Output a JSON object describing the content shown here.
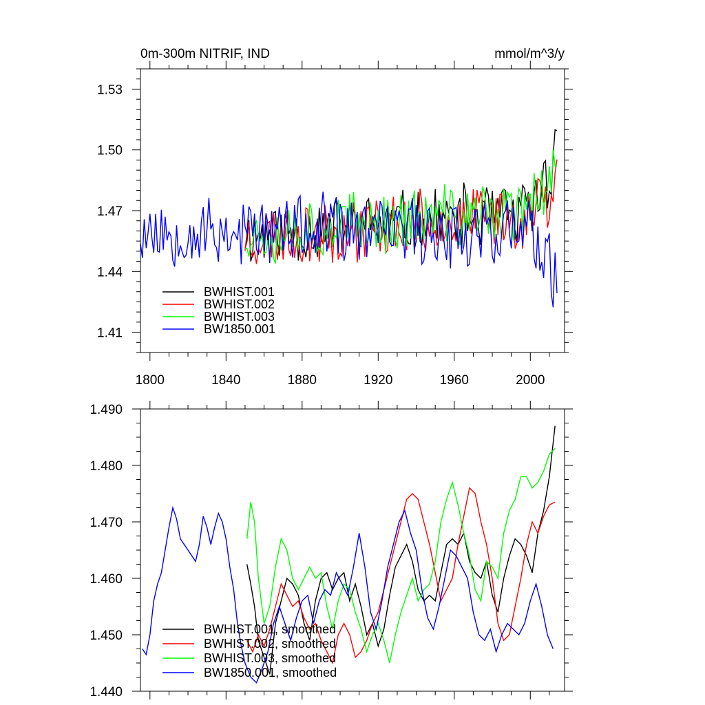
{
  "chart_data": [
    {
      "type": "line",
      "title_left": "0m-300m NITRIF, IND",
      "title_right": "mmol/m^3/y",
      "xlim": [
        1795,
        2018
      ],
      "ylim": [
        1.4,
        1.54
      ],
      "xticks": [
        1800,
        1840,
        1880,
        1920,
        1960,
        2000
      ],
      "yticks": [
        1.41,
        1.44,
        1.47,
        1.5,
        1.53
      ],
      "ytick_labels": [
        "1.41",
        "1.44",
        "1.47",
        "1.50",
        "1.53"
      ],
      "legend": [
        "BWHIST.001",
        "BWHIST.002",
        "BWHIST.003",
        "BW1850.001"
      ],
      "legend_position": "bottom-left",
      "series": [
        {
          "name": "BWHIST.001",
          "color": "#000000",
          "x_start": 1850,
          "seed": 11,
          "base": 1.458,
          "trend": 0.012,
          "amp": 0.018,
          "end_boost": 0.03
        },
        {
          "name": "BWHIST.002",
          "color": "#ff0000",
          "x_start": 1850,
          "seed": 23,
          "base": 1.457,
          "trend": 0.012,
          "amp": 0.018,
          "end_boost": 0.02
        },
        {
          "name": "BWHIST.003",
          "color": "#00ff00",
          "x_start": 1850,
          "seed": 37,
          "base": 1.459,
          "trend": 0.012,
          "amp": 0.018,
          "end_boost": 0.025
        },
        {
          "name": "BW1850.001",
          "color": "#0000ff",
          "x_start": 1795,
          "seed": 53,
          "base": 1.46,
          "trend": 0.0,
          "amp": 0.02,
          "end_boost": -0.02
        }
      ]
    },
    {
      "type": "line",
      "xlim": [
        1795,
        2018
      ],
      "ylim": [
        1.44,
        1.49
      ],
      "xticks": [
        1800,
        1840,
        1880,
        1920,
        1960,
        2000
      ],
      "yticks": [
        1.44,
        1.45,
        1.46,
        1.47,
        1.48,
        1.49
      ],
      "ytick_labels": [
        "1.440",
        "1.450",
        "1.460",
        "1.470",
        "1.480",
        "1.490"
      ],
      "legend": [
        "BWHIST.001, smoothed",
        "BWHIST.002, smoothed",
        "BWHIST.003, smoothed",
        "BW1850.001, smoothed"
      ],
      "legend_position": "bottom-left",
      "series": [
        {
          "name": "BWHIST.001, smoothed",
          "color": "#000000",
          "x": [
            1851,
            1853,
            1855,
            1857,
            1860,
            1863,
            1866,
            1869,
            1872,
            1875,
            1878,
            1881,
            1884,
            1887,
            1890,
            1893,
            1896,
            1899,
            1902,
            1905,
            1908,
            1911,
            1914,
            1917,
            1920,
            1923,
            1926,
            1929,
            1932,
            1935,
            1938,
            1941,
            1944,
            1947,
            1950,
            1953,
            1956,
            1959,
            1962,
            1965,
            1968,
            1971,
            1974,
            1977,
            1980,
            1983,
            1986,
            1989,
            1992,
            1995,
            1998,
            2001,
            2004,
            2007,
            2010,
            2013
          ],
          "values": [
            1.4625,
            1.459,
            1.455,
            1.449,
            1.446,
            1.443,
            1.452,
            1.456,
            1.46,
            1.459,
            1.457,
            1.452,
            1.449,
            1.456,
            1.46,
            1.461,
            1.458,
            1.46,
            1.461,
            1.456,
            1.459,
            1.455,
            1.45,
            1.452,
            1.448,
            1.451,
            1.457,
            1.462,
            1.464,
            1.466,
            1.463,
            1.458,
            1.456,
            1.457,
            1.456,
            1.461,
            1.466,
            1.467,
            1.466,
            1.468,
            1.463,
            1.461,
            1.46,
            1.463,
            1.457,
            1.454,
            1.46,
            1.464,
            1.467,
            1.466,
            1.464,
            1.461,
            1.468,
            1.472,
            1.478,
            1.487
          ]
        },
        {
          "name": "BWHIST.002, smoothed",
          "color": "#ff0000",
          "x": [
            1851,
            1854,
            1857,
            1860,
            1863,
            1866,
            1869,
            1872,
            1875,
            1878,
            1881,
            1884,
            1887,
            1890,
            1893,
            1896,
            1899,
            1902,
            1905,
            1908,
            1911,
            1914,
            1917,
            1920,
            1923,
            1926,
            1929,
            1932,
            1935,
            1938,
            1941,
            1944,
            1947,
            1950,
            1953,
            1956,
            1959,
            1962,
            1965,
            1968,
            1971,
            1974,
            1977,
            1980,
            1983,
            1986,
            1989,
            1992,
            1995,
            1998,
            2001,
            2004,
            2007,
            2010,
            2013
          ],
          "values": [
            1.449,
            1.447,
            1.45,
            1.448,
            1.451,
            1.455,
            1.459,
            1.457,
            1.455,
            1.456,
            1.453,
            1.451,
            1.452,
            1.449,
            1.447,
            1.445,
            1.45,
            1.452,
            1.45,
            1.446,
            1.447,
            1.449,
            1.452,
            1.454,
            1.458,
            1.462,
            1.466,
            1.47,
            1.474,
            1.475,
            1.474,
            1.47,
            1.466,
            1.461,
            1.456,
            1.458,
            1.46,
            1.466,
            1.471,
            1.476,
            1.475,
            1.47,
            1.466,
            1.46,
            1.452,
            1.449,
            1.45,
            1.455,
            1.46,
            1.466,
            1.47,
            1.468,
            1.471,
            1.473,
            1.4735
          ]
        },
        {
          "name": "BWHIST.003, smoothed",
          "color": "#00ff00",
          "x": [
            1851,
            1853,
            1855,
            1857,
            1860,
            1863,
            1866,
            1869,
            1872,
            1875,
            1878,
            1881,
            1884,
            1887,
            1890,
            1893,
            1896,
            1899,
            1902,
            1905,
            1908,
            1911,
            1914,
            1917,
            1920,
            1923,
            1926,
            1929,
            1932,
            1935,
            1938,
            1941,
            1944,
            1947,
            1950,
            1953,
            1956,
            1959,
            1962,
            1965,
            1968,
            1971,
            1974,
            1977,
            1980,
            1983,
            1986,
            1989,
            1992,
            1995,
            1998,
            2001,
            2004,
            2007,
            2010,
            2013
          ],
          "values": [
            1.467,
            1.4735,
            1.47,
            1.46,
            1.452,
            1.455,
            1.462,
            1.467,
            1.465,
            1.46,
            1.458,
            1.46,
            1.462,
            1.46,
            1.461,
            1.455,
            1.451,
            1.456,
            1.459,
            1.458,
            1.454,
            1.451,
            1.447,
            1.45,
            1.452,
            1.449,
            1.445,
            1.45,
            1.454,
            1.457,
            1.46,
            1.456,
            1.458,
            1.459,
            1.463,
            1.47,
            1.474,
            1.477,
            1.473,
            1.468,
            1.464,
            1.458,
            1.456,
            1.463,
            1.462,
            1.46,
            1.468,
            1.472,
            1.474,
            1.478,
            1.478,
            1.476,
            1.477,
            1.479,
            1.482,
            1.483
          ]
        },
        {
          "name": "BW1850.001, smoothed",
          "color": "#0000ff",
          "x": [
            1796,
            1798,
            1800,
            1802,
            1804,
            1806,
            1808,
            1810,
            1812,
            1814,
            1816,
            1818,
            1820,
            1822,
            1824,
            1826,
            1828,
            1830,
            1832,
            1834,
            1836,
            1838,
            1840,
            1842,
            1844,
            1846,
            1848,
            1850,
            1853,
            1856,
            1859,
            1862,
            1865,
            1868,
            1871,
            1874,
            1877,
            1880,
            1883,
            1886,
            1889,
            1892,
            1895,
            1898,
            1901,
            1904,
            1907,
            1910,
            1913,
            1916,
            1919,
            1922,
            1925,
            1928,
            1931,
            1934,
            1937,
            1940,
            1943,
            1946,
            1949,
            1952,
            1955,
            1958,
            1961,
            1964,
            1967,
            1970,
            1973,
            1976,
            1979,
            1982,
            1985,
            1988,
            1991,
            1994,
            1997,
            2000,
            2003,
            2006,
            2009,
            2012
          ],
          "values": [
            1.4475,
            1.4465,
            1.45,
            1.456,
            1.459,
            1.461,
            1.465,
            1.469,
            1.4725,
            1.4705,
            1.467,
            1.466,
            1.465,
            1.464,
            1.463,
            1.466,
            1.471,
            1.469,
            1.466,
            1.469,
            1.4715,
            1.47,
            1.467,
            1.462,
            1.458,
            1.452,
            1.448,
            1.445,
            1.4425,
            1.4415,
            1.444,
            1.447,
            1.452,
            1.455,
            1.452,
            1.449,
            1.453,
            1.456,
            1.457,
            1.452,
            1.456,
            1.458,
            1.457,
            1.461,
            1.459,
            1.457,
            1.462,
            1.468,
            1.462,
            1.454,
            1.451,
            1.456,
            1.462,
            1.466,
            1.47,
            1.472,
            1.468,
            1.465,
            1.458,
            1.453,
            1.451,
            1.455,
            1.46,
            1.465,
            1.464,
            1.462,
            1.46,
            1.454,
            1.45,
            1.449,
            1.451,
            1.447,
            1.45,
            1.452,
            1.451,
            1.45,
            1.452,
            1.456,
            1.459,
            1.455,
            1.45,
            1.4475
          ]
        }
      ]
    }
  ]
}
